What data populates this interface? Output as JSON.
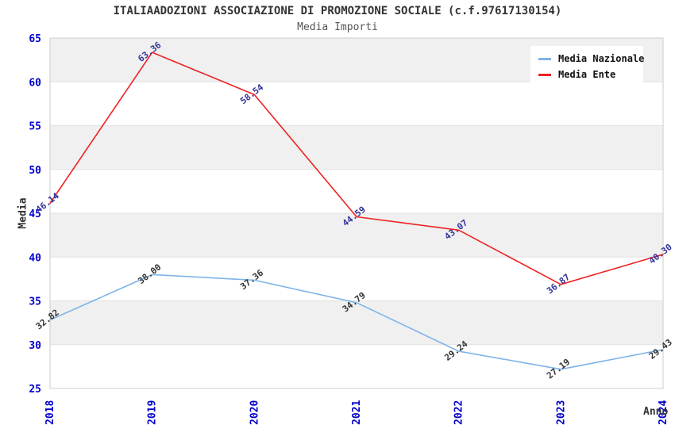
{
  "title": "ITALIAADOZIONI ASSOCIAZIONE DI PROMOZIONE SOCIALE (c.f.97617130154)",
  "subtitle": "Media Importi",
  "chart_data": {
    "type": "line",
    "title": "ITALIAADOZIONI ASSOCIAZIONE DI PROMOZIONE SOCIALE (c.f.97617130154)",
    "subtitle": "Media Importi",
    "categories": [
      "2018",
      "2019",
      "2020",
      "2021",
      "2022",
      "2023",
      "2024"
    ],
    "series": [
      {
        "name": "Media Nazionale",
        "color": "#7eb4e8",
        "label_color": "#333333",
        "values": [
          32.82,
          38.0,
          37.36,
          34.79,
          29.24,
          27.19,
          29.43
        ]
      },
      {
        "name": "Media Ente",
        "color": "#ee2222",
        "label_color": "#333399",
        "values": [
          46.14,
          63.36,
          58.54,
          44.59,
          43.07,
          36.87,
          40.3
        ]
      }
    ],
    "xlabel": "Anno",
    "ylabel": "Media",
    "ylim": [
      25,
      65
    ],
    "ytick_step": 5,
    "yticks": [
      25,
      30,
      35,
      40,
      45,
      50,
      55,
      60,
      65
    ],
    "grid": "alternating-horizontal-bands",
    "legend_position": "top-right",
    "colors": {
      "tick_label": "#0000cc",
      "band_gray": "#f0f0f0",
      "band_edge": "#e2e2e2",
      "plot_border": "#cccccc",
      "title": "#333333",
      "subtitle": "#555555"
    }
  }
}
